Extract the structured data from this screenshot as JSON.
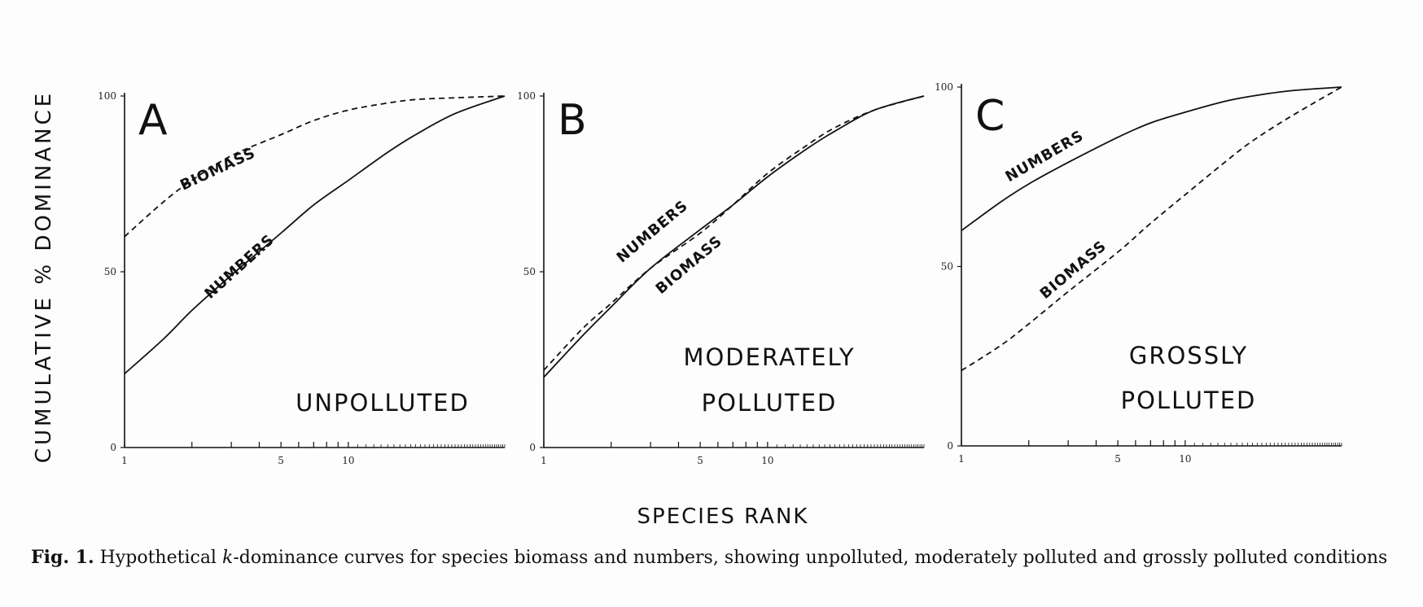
{
  "ylabel": "CUMULATIVE % DOMINANCE",
  "xlabel": "SPECIES RANK",
  "caption": {
    "label": "Fig. 1.",
    "text_before": " Hypothetical ",
    "k": "k",
    "text_after": "-dominance curves for species biomass and numbers, showing unpolluted, moderately polluted and grossly polluted conditions"
  },
  "colors": {
    "ink": "#111111"
  },
  "chart_data": [
    {
      "type": "line",
      "panel": "A",
      "condition_lines": [
        "UNPOLLUTED"
      ],
      "x_scale": "log",
      "xlim": [
        1,
        50
      ],
      "ylim": [
        0,
        100
      ],
      "x_ticks": [
        1,
        5,
        10
      ],
      "y_ticks": [
        0,
        50,
        100
      ],
      "series": [
        {
          "name": "BIOMASS",
          "style": "dashed",
          "x": [
            1,
            1.5,
            2,
            3,
            5,
            7,
            10,
            15,
            20,
            30,
            50
          ],
          "y": [
            60,
            70,
            76,
            83,
            89,
            93,
            96,
            98,
            99,
            99.5,
            100
          ]
        },
        {
          "name": "NUMBERS",
          "style": "solid",
          "x": [
            1,
            1.5,
            2,
            3,
            5,
            7,
            10,
            15,
            20,
            30,
            50
          ],
          "y": [
            21,
            31,
            39,
            49,
            61,
            69,
            76,
            84,
            89,
            95,
            100
          ]
        }
      ]
    },
    {
      "type": "line",
      "panel": "B",
      "condition_lines": [
        "MODERATELY",
        "POLLUTED"
      ],
      "x_scale": "log",
      "xlim": [
        1,
        50
      ],
      "ylim": [
        0,
        100
      ],
      "x_ticks": [
        1,
        5,
        10
      ],
      "y_ticks": [
        0,
        50,
        100
      ],
      "series": [
        {
          "name": "NUMBERS",
          "style": "solid",
          "x": [
            1,
            1.5,
            2,
            3,
            5,
            7,
            10,
            15,
            20,
            30,
            50
          ],
          "y": [
            20,
            32,
            40,
            51,
            62,
            69,
            77,
            85,
            90,
            96,
            100
          ]
        },
        {
          "name": "BIOMASS",
          "style": "dashed",
          "x": [
            1,
            1.5,
            2,
            3,
            5,
            7,
            10,
            15,
            20,
            30,
            50
          ],
          "y": [
            22,
            34,
            41,
            51,
            61,
            69,
            78,
            86,
            91,
            96,
            100
          ]
        }
      ]
    },
    {
      "type": "line",
      "panel": "C",
      "condition_lines": [
        "GROSSLY",
        "POLLUTED"
      ],
      "x_scale": "log",
      "xlim": [
        1,
        50
      ],
      "ylim": [
        0,
        100
      ],
      "x_ticks": [
        1,
        5,
        10
      ],
      "y_ticks": [
        0,
        50,
        100
      ],
      "series": [
        {
          "name": "NUMBERS",
          "style": "solid",
          "x": [
            1,
            1.5,
            2,
            3,
            5,
            7,
            10,
            15,
            20,
            30,
            50
          ],
          "y": [
            60,
            68,
            73,
            79,
            86,
            90,
            93,
            96,
            97.5,
            99,
            100
          ]
        },
        {
          "name": "BIOMASS",
          "style": "dashed",
          "x": [
            1,
            1.5,
            2,
            3,
            5,
            7,
            10,
            15,
            20,
            30,
            50
          ],
          "y": [
            21,
            28,
            34,
            43,
            54,
            62,
            70,
            79,
            85,
            92,
            100
          ]
        }
      ]
    }
  ]
}
